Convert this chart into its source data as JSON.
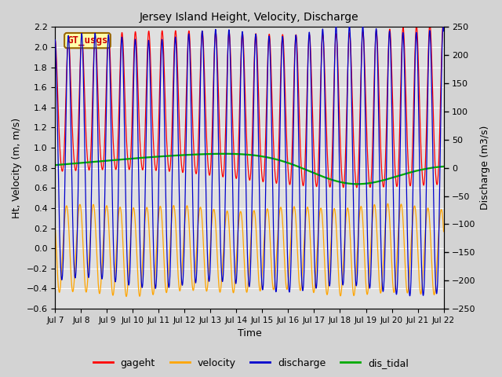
{
  "title": "Jersey Island Height, Velocity, Discharge",
  "xlabel": "Time",
  "ylabel_left": "Ht, Velocity (m, m/s)",
  "ylabel_right": "Discharge (m3/s)",
  "ylim_left": [
    -0.6,
    2.2
  ],
  "ylim_right": [
    -250,
    250
  ],
  "xtick_labels": [
    "Jul 7",
    "Jul 8",
    "Jul 9",
    "Jul 10",
    "Jul 11",
    "Jul 12",
    "Jul 13",
    "Jul 14",
    "Jul 15",
    "Jul 16",
    "Jul 17",
    "Jul 18",
    "Jul 19",
    "Jul 20",
    "Jul 21",
    "Jul 22"
  ],
  "colors": {
    "gageht": "#ff0000",
    "velocity": "#ffa500",
    "discharge": "#0000cd",
    "dis_tidal": "#00aa00"
  },
  "watermark_text": "GT_usgs",
  "watermark_color": "#cc0000",
  "watermark_bg": "#ffffaa",
  "background_color": "#d3d3d3",
  "plot_bg_color": "#e0e0e0",
  "n_points": 3000
}
